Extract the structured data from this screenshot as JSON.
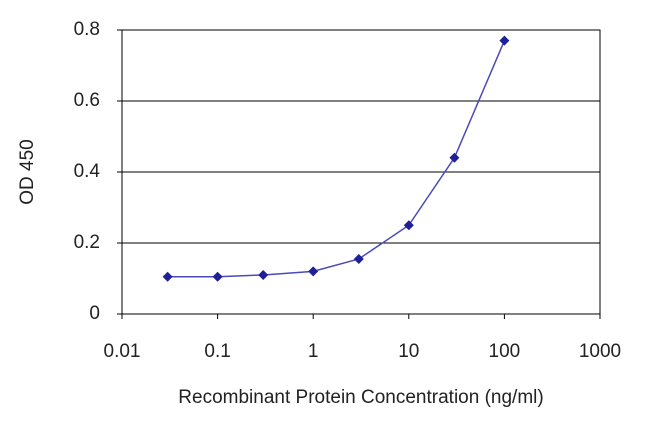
{
  "chart_data": {
    "type": "line",
    "xlabel": "Recombinant Protein Concentration (ng/ml)",
    "ylabel": "OD 450",
    "x": [
      0.03,
      0.1,
      0.3,
      1,
      3,
      10,
      30,
      100
    ],
    "series": [
      {
        "color": "#1f1f99",
        "values": [
          0.105,
          0.105,
          0.11,
          0.12,
          0.155,
          0.25,
          0.44,
          0.77
        ]
      }
    ],
    "xscale": "log",
    "xlim": [
      0.01,
      1000
    ],
    "xticks": [
      0.01,
      0.1,
      1,
      10,
      100,
      1000
    ],
    "ylim": [
      0,
      0.8
    ],
    "yticks": [
      0,
      0.2,
      0.4,
      0.6,
      0.8
    ],
    "grid": true
  }
}
